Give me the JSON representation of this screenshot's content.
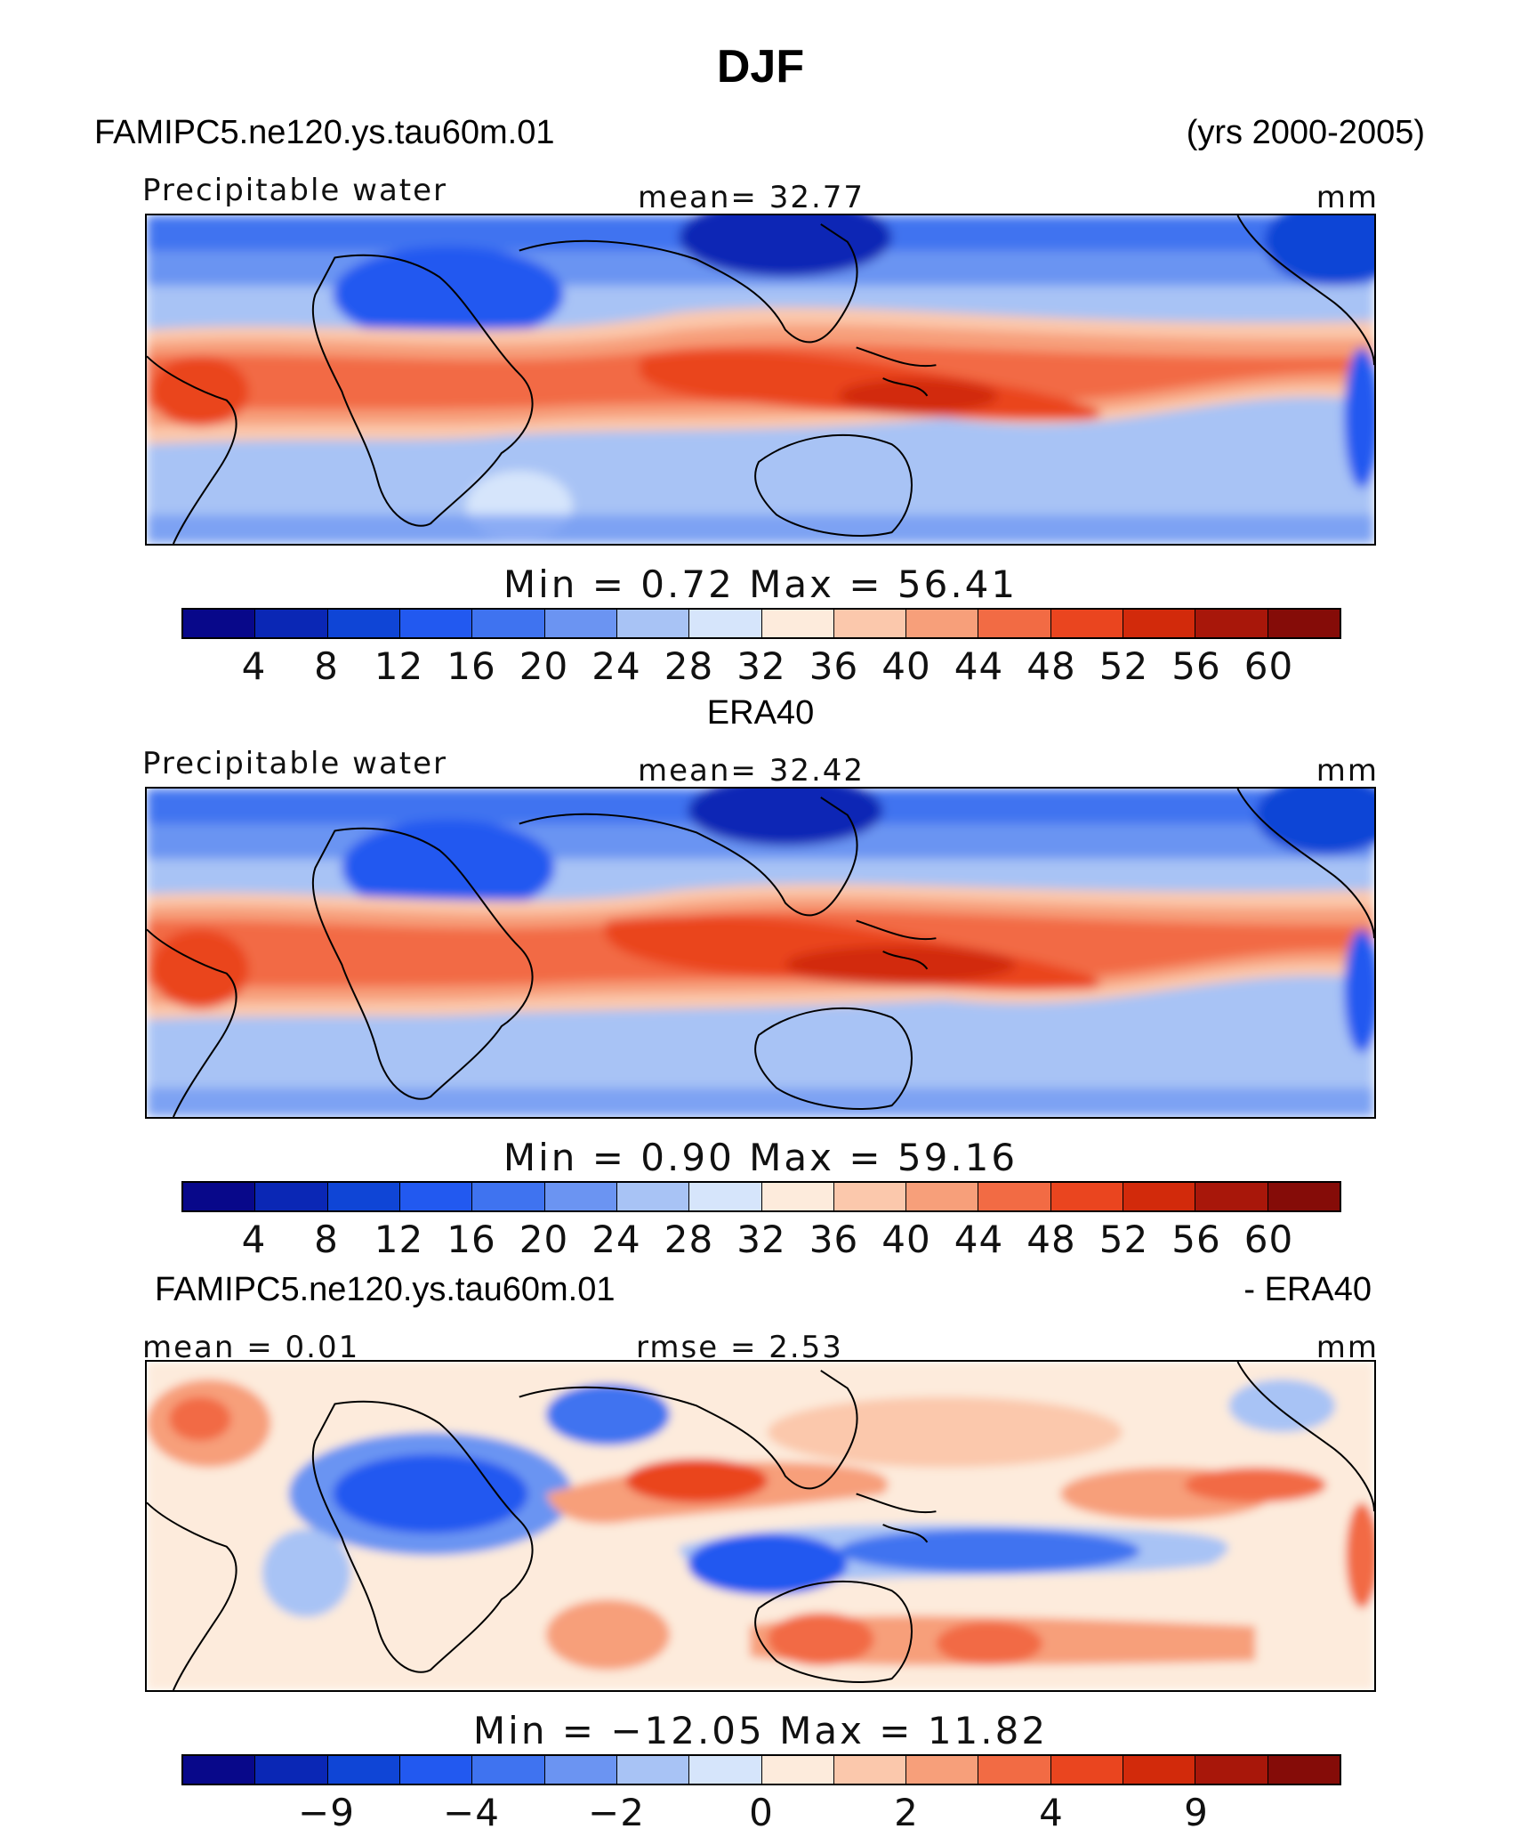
{
  "figure": {
    "title": "DJF"
  },
  "panels": [
    {
      "header_left": "FAMIPC5.ne120.ys.tau60m.01",
      "header_right": "(yrs 2000-2005)",
      "variable": "Precipitable water",
      "center_stat": "mean=   32.77",
      "units": "mm",
      "minmax": "Min  =     0.72  Max  =    56.41",
      "map_kind": "field"
    },
    {
      "header_left": "ERA40",
      "variable": "Precipitable water",
      "center_stat": "mean=   32.42",
      "units": "mm",
      "minmax": "Min  =     0.90  Max  =    59.16",
      "map_kind": "field"
    },
    {
      "header_left": "FAMIPC5.ne120.ys.tau60m.01",
      "header_right": "- ERA40",
      "variable": "mean =    0.01",
      "center_stat": "rmse  =     2.53",
      "units": "mm",
      "minmax": "Min  = −12.05  Max  =    11.82",
      "map_kind": "diff"
    }
  ],
  "colorbar": {
    "colors": [
      "#08088a",
      "#0a27b5",
      "#0f45d6",
      "#2259f0",
      "#3f73f0",
      "#6b94f2",
      "#a8c3f5",
      "#d6e5fb",
      "#fdebdc",
      "#fbc8ac",
      "#f79f7a",
      "#f26b44",
      "#ea451f",
      "#d22a0b",
      "#a8170a",
      "#850c08"
    ],
    "field_ticks": [
      "4",
      "8",
      "12",
      "16",
      "20",
      "24",
      "28",
      "32",
      "36",
      "40",
      "44",
      "48",
      "52",
      "56",
      "60"
    ],
    "diff_ticks": [
      "−9",
      "−4",
      "−2",
      "0",
      "2",
      "4",
      "9"
    ]
  }
}
